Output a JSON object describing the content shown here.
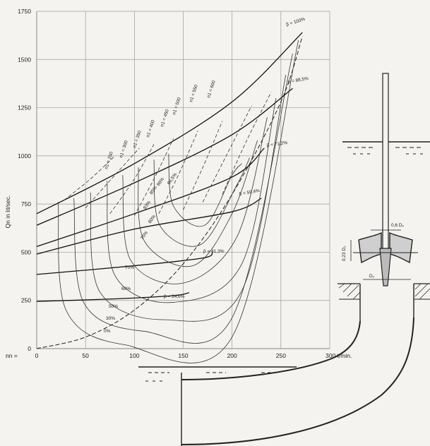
{
  "chart_data": {
    "type": "line",
    "title": "",
    "ylabel": "Qn in lit/sec.",
    "xlabel": "nn = ",
    "x_unit_label": "300 t/min.",
    "xlim": [
      0,
      300
    ],
    "ylim": [
      0,
      1750
    ],
    "x_ticks": [
      0,
      50,
      100,
      150,
      200,
      250,
      300
    ],
    "x_tick_labels": [
      "0",
      "50",
      "100",
      "150",
      "200",
      "250",
      ""
    ],
    "y_ticks": [
      0,
      250,
      500,
      750,
      1000,
      1250,
      1500,
      1750
    ],
    "y_tick_labels": [
      "0",
      "250",
      "500",
      "750",
      "1000",
      "1250",
      "1500",
      "1750"
    ],
    "grid": true,
    "beta_series": [
      {
        "label": "β = 100%",
        "points": [
          [
            0,
            700
          ],
          [
            100,
            960
          ],
          [
            200,
            1280
          ],
          [
            272,
            1640
          ]
        ]
      },
      {
        "label": "β = 88,5%",
        "points": [
          [
            0,
            640
          ],
          [
            100,
            860
          ],
          [
            200,
            1110
          ],
          [
            262,
            1350
          ]
        ]
      },
      {
        "label": "β = 71,2%",
        "points": [
          [
            0,
            530
          ],
          [
            100,
            700
          ],
          [
            200,
            890
          ],
          [
            233,
            1040
          ]
        ]
      },
      {
        "label": "β = 59,4%",
        "points": [
          [
            0,
            490
          ],
          [
            100,
            620
          ],
          [
            200,
            710
          ],
          [
            230,
            780
          ]
        ]
      },
      {
        "label": "β = 41,3%",
        "points": [
          [
            0,
            385
          ],
          [
            100,
            430
          ],
          [
            170,
            470
          ],
          [
            180,
            500
          ]
        ]
      },
      {
        "label": "β = 24,6%",
        "points": [
          [
            0,
            245
          ],
          [
            80,
            258
          ],
          [
            140,
            275
          ],
          [
            156,
            290
          ]
        ]
      }
    ],
    "speed_labels": [
      "n1 = 250",
      "n1 = 300",
      "n1 = 350",
      "n1 = 400",
      "n1 = 450",
      "n1 = 500",
      "n1 = 550",
      "n1 = 600"
    ],
    "efficiency_labels": [
      "0%",
      "30%",
      "50%",
      "60%",
      "70%",
      "75%",
      "80%",
      "83%",
      "85%",
      "86%",
      "86,5%"
    ],
    "shaft_curve": [
      [
        0,
        0
      ],
      [
        50,
        60
      ],
      [
        100,
        200
      ],
      [
        150,
        440
      ],
      [
        200,
        800
      ],
      [
        250,
        1280
      ],
      [
        272,
        1620
      ]
    ],
    "diagram_labels": {
      "blade_diameter": "0,6 D₂",
      "height": "0,23 D₂",
      "diameter": "D₂"
    }
  }
}
